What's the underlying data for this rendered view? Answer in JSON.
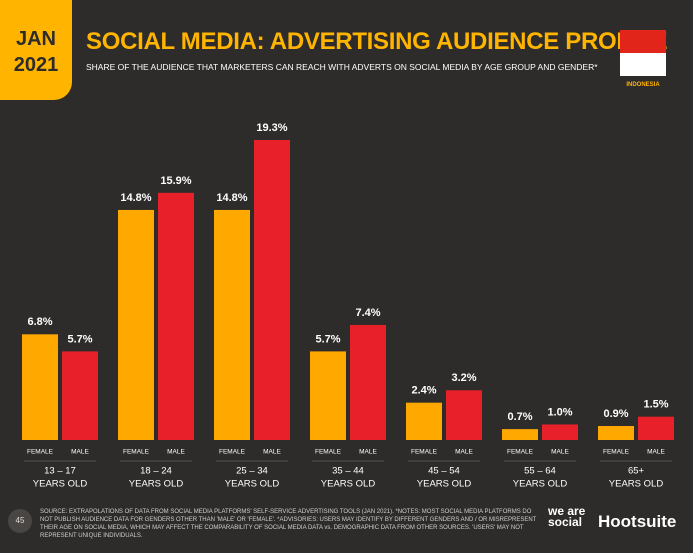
{
  "header": {
    "date_line1": "JAN",
    "date_line2": "2021",
    "title": "SOCIAL MEDIA: ADVERTISING AUDIENCE PROFILE",
    "subtitle": "SHARE OF THE AUDIENCE THAT MARKETERS CAN REACH WITH ADVERTS ON SOCIAL MEDIA BY AGE GROUP AND GENDER*",
    "country": "INDONESIA"
  },
  "chart_data": {
    "type": "bar",
    "categories": [
      "13 – 17",
      "18 – 24",
      "25 – 34",
      "35 – 44",
      "45 – 54",
      "55 – 64",
      "65+"
    ],
    "category_suffix": "YEARS OLD",
    "series": [
      {
        "name": "FEMALE",
        "color": "#ffa800",
        "values": [
          6.8,
          14.8,
          14.8,
          5.7,
          2.4,
          0.7,
          0.9
        ],
        "value_labels": [
          "6.8%",
          "14.8%",
          "14.8%",
          "5.7%",
          "2.4%",
          "0.7%",
          "0.9%"
        ]
      },
      {
        "name": "MALE",
        "color": "#e8202a",
        "values": [
          5.7,
          15.9,
          19.3,
          7.4,
          3.2,
          1.0,
          1.5
        ],
        "value_labels": [
          "5.7%",
          "15.9%",
          "19.3%",
          "7.4%",
          "3.2%",
          "1.0%",
          "1.5%"
        ]
      }
    ]
  },
  "footer": {
    "page": "45",
    "source": "SOURCE: EXTRAPOLATIONS OF DATA FROM SOCIAL MEDIA PLATFORMS' SELF-SERVICE ADVERTISING TOOLS (JAN 2021). *NOTES: MOST SOCIAL MEDIA PLATFORMS DO NOT PUBLISH AUDIENCE DATA FOR GENDERS OTHER THAN 'MALE' OR 'FEMALE'. *ADVISORIES: USERS MAY IDENTIFY BY DIFFERENT GENDERS AND / OR MISREPRESENT THEIR AGE ON SOCIAL MEDIA, WHICH MAY AFFECT THE COMPARABILITY OF SOCIAL MEDIA DATA vs. DEMOGRAPHIC DATA FROM OTHER SOURCES. 'USERS' MAY NOT REPRESENT UNIQUE INDIVIDUALS.",
    "logo1": "we are social",
    "logo2": "Hootsuite"
  }
}
